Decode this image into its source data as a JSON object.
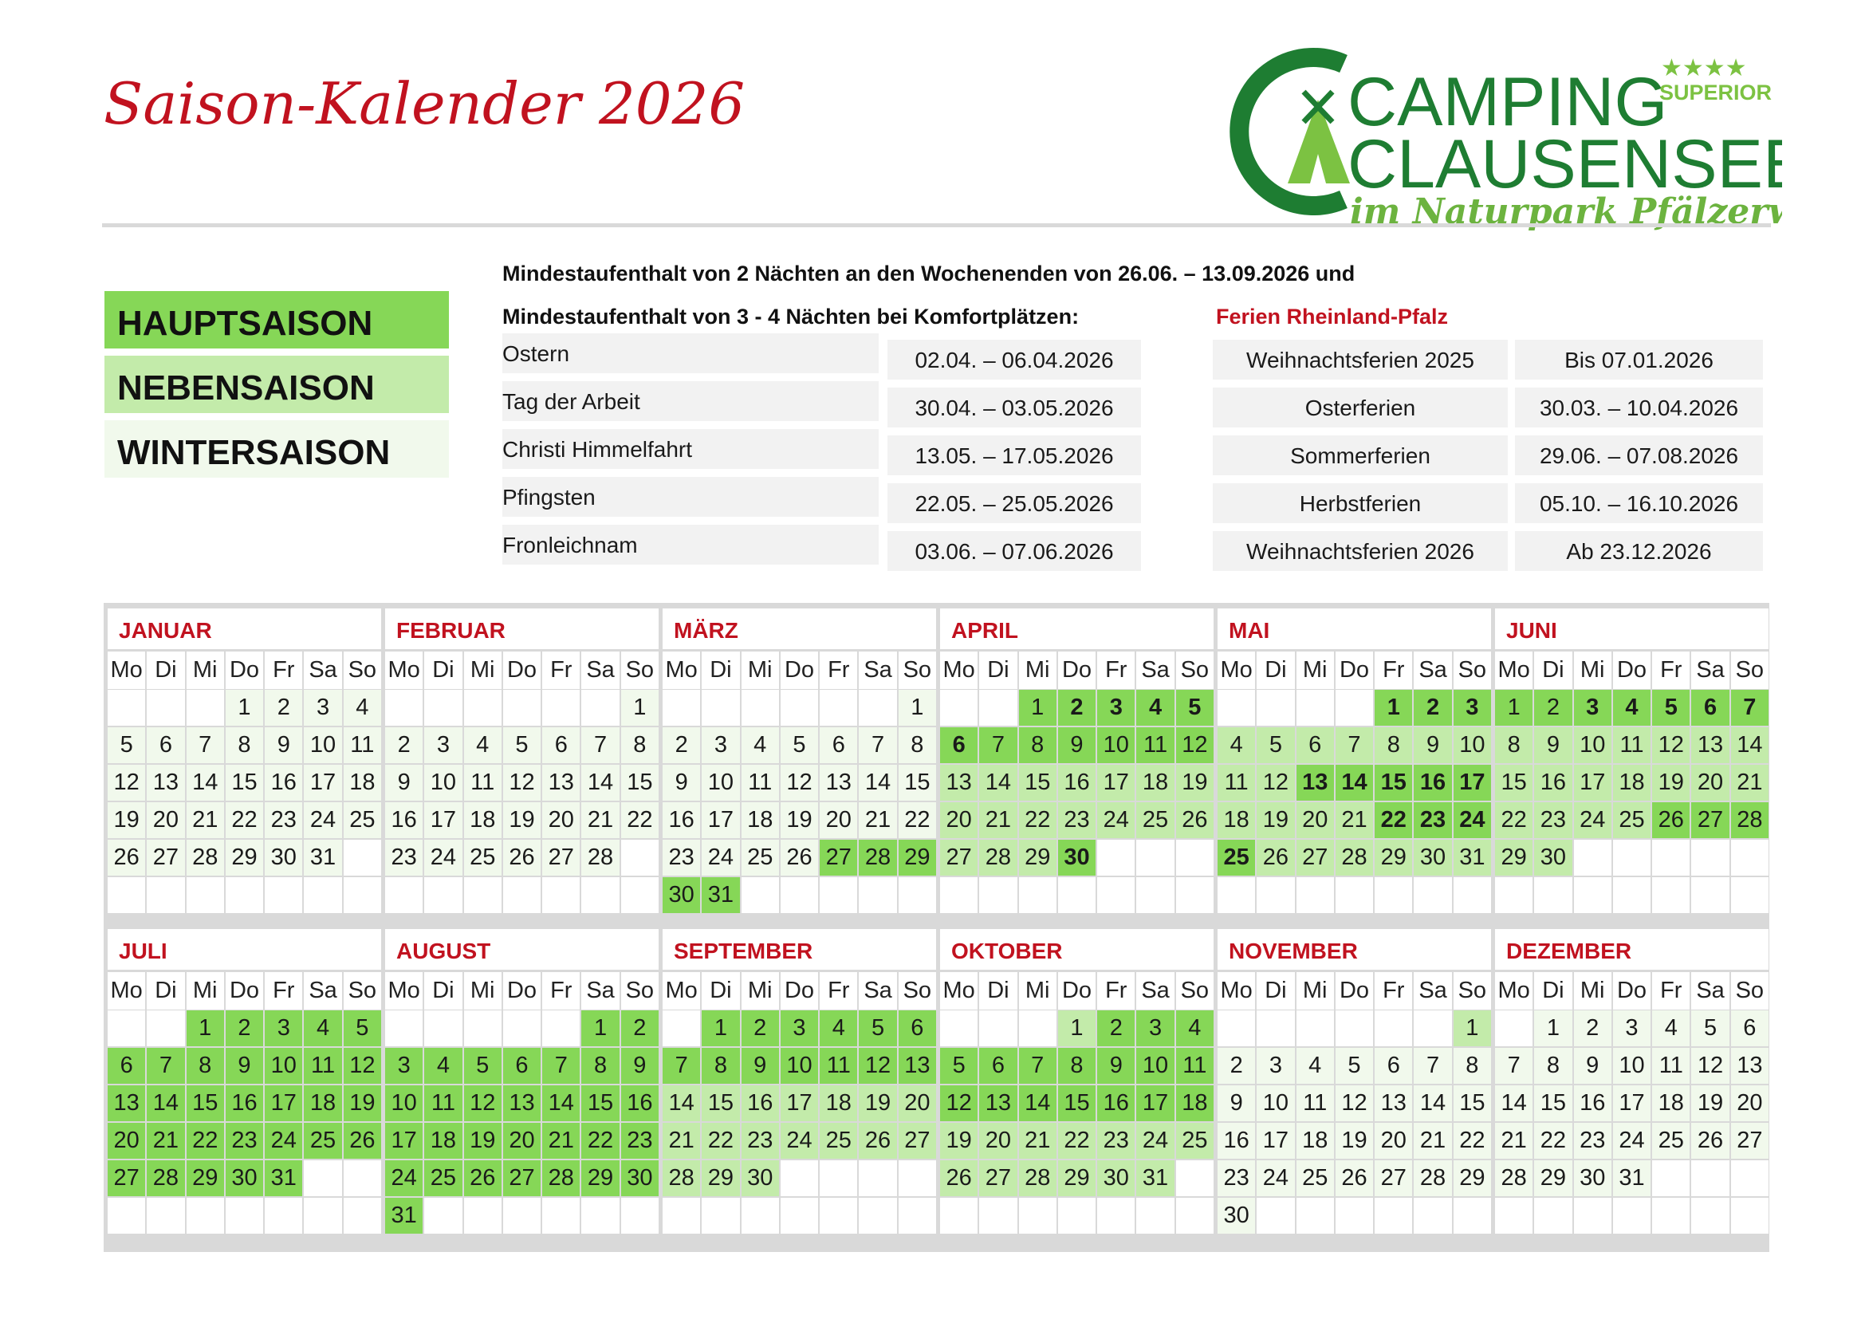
{
  "title": "Saison-Kalender 2026",
  "logo": {
    "line1": "CAMPING",
    "line2": "CLAUSENSEE",
    "stars": "★★★★",
    "badge": "SUPERIOR",
    "tagline": "im Naturpark Pfälzerwald",
    "colors": {
      "dark": "#1e7d32",
      "light": "#7cc242",
      "tagline": "#6cb33f"
    }
  },
  "legend": [
    {
      "label": "HAUPTSAISON",
      "color": "#86d757"
    },
    {
      "label": "NEBENSAISON",
      "color": "#c3ebaa"
    },
    {
      "label": "WINTERSAISON",
      "color": "#f1f9ec"
    }
  ],
  "notice": {
    "line1": "Mindestaufenthalt von 2 Nächten an den Wochenenden von 26.06. – 13.09.2026 und",
    "line2": "Mindestaufenthalt von 3 - 4 Nächten bei Komfortplätzen:"
  },
  "holidays": [
    {
      "name": "Ostern",
      "dates": "02.04. – 06.04.2026"
    },
    {
      "name": "Tag der Arbeit",
      "dates": "30.04. – 03.05.2026"
    },
    {
      "name": "Christi Himmelfahrt",
      "dates": "13.05. – 17.05.2026"
    },
    {
      "name": "Pfingsten",
      "dates": "22.05. – 25.05.2026"
    },
    {
      "name": "Fronleichnam",
      "dates": "03.06. – 07.06.2026"
    }
  ],
  "ferien_title": "Ferien Rheinland-Pfalz",
  "ferien": [
    {
      "name": "Weihnachtsferien 2025",
      "dates": "Bis 07.01.2026"
    },
    {
      "name": "Osterferien",
      "dates": "30.03. – 10.04.2026"
    },
    {
      "name": "Sommerferien",
      "dates": "29.06. – 07.08.2026"
    },
    {
      "name": "Herbstferien",
      "dates": "05.10. – 16.10.2026"
    },
    {
      "name": "Weihnachtsferien 2026",
      "dates": "Ab 23.12.2026"
    }
  ],
  "weekdays": [
    "Mo",
    "Di",
    "Mi",
    "Do",
    "Fr",
    "Sa",
    "So"
  ],
  "season_colors": {
    "h": "#86d757",
    "n": "#c3ebaa",
    "w": "#f1f9ec"
  },
  "months": [
    {
      "name": "JANUAR",
      "days": 31,
      "offset": 3,
      "default": "w",
      "ranges": []
    },
    {
      "name": "FEBRUAR",
      "days": 28,
      "offset": 6,
      "default": "w",
      "ranges": []
    },
    {
      "name": "MÄRZ",
      "days": 31,
      "offset": 6,
      "default": "w",
      "ranges": [
        [
          27,
          31,
          "h"
        ]
      ]
    },
    {
      "name": "APRIL",
      "days": 30,
      "offset": 2,
      "default": "n",
      "ranges": [
        [
          1,
          12,
          "h"
        ],
        [
          30,
          30,
          "h"
        ]
      ],
      "bold": [
        2,
        3,
        4,
        5,
        6,
        30
      ]
    },
    {
      "name": "MAI",
      "days": 31,
      "offset": 4,
      "default": "n",
      "ranges": [
        [
          1,
          3,
          "h"
        ],
        [
          13,
          17,
          "h"
        ],
        [
          22,
          25,
          "h"
        ]
      ],
      "bold": [
        1,
        2,
        3,
        13,
        14,
        15,
        16,
        17,
        22,
        23,
        24,
        25
      ]
    },
    {
      "name": "JUNI",
      "days": 30,
      "offset": 0,
      "default": "n",
      "ranges": [
        [
          1,
          7,
          "h"
        ],
        [
          26,
          28,
          "h"
        ]
      ],
      "bold": [
        3,
        4,
        5,
        6,
        7
      ]
    },
    {
      "name": "JULI",
      "days": 31,
      "offset": 2,
      "default": "h",
      "ranges": []
    },
    {
      "name": "AUGUST",
      "days": 31,
      "offset": 5,
      "default": "h",
      "ranges": []
    },
    {
      "name": "SEPTEMBER",
      "days": 30,
      "offset": 1,
      "default": "n",
      "ranges": [
        [
          1,
          13,
          "h"
        ]
      ]
    },
    {
      "name": "OKTOBER",
      "days": 31,
      "offset": 3,
      "default": "n",
      "ranges": [
        [
          2,
          4,
          "h"
        ],
        [
          5,
          18,
          "h"
        ]
      ]
    },
    {
      "name": "NOVEMBER",
      "days": 30,
      "offset": 6,
      "default": "w",
      "ranges": [
        [
          1,
          1,
          "n"
        ]
      ]
    },
    {
      "name": "DEZEMBER",
      "days": 31,
      "offset": 1,
      "default": "w",
      "ranges": []
    }
  ]
}
